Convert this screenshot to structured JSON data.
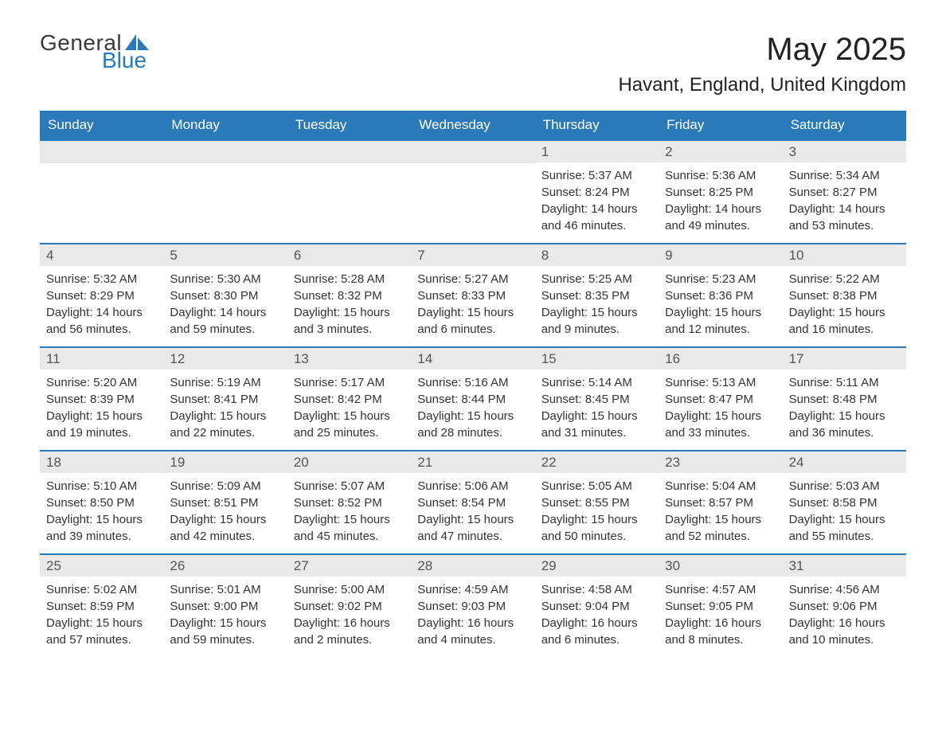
{
  "logo": {
    "general": "General",
    "blue": "Blue"
  },
  "title": "May 2025",
  "location": "Havant, England, United Kingdom",
  "colors": {
    "header_bg": "#2a7ab9",
    "header_text": "#ffffff",
    "daynum_bg": "#e9e9e9",
    "border": "#2a7ab9",
    "body_text": "#333333",
    "logo_dark": "#3a3a3c",
    "logo_blue": "#2a7ab9"
  },
  "weekdays": [
    "Sunday",
    "Monday",
    "Tuesday",
    "Wednesday",
    "Thursday",
    "Friday",
    "Saturday"
  ],
  "weeks": [
    [
      null,
      null,
      null,
      null,
      {
        "day": "1",
        "sunrise": "5:37 AM",
        "sunset": "8:24 PM",
        "daylight": "14 hours and 46 minutes."
      },
      {
        "day": "2",
        "sunrise": "5:36 AM",
        "sunset": "8:25 PM",
        "daylight": "14 hours and 49 minutes."
      },
      {
        "day": "3",
        "sunrise": "5:34 AM",
        "sunset": "8:27 PM",
        "daylight": "14 hours and 53 minutes."
      }
    ],
    [
      {
        "day": "4",
        "sunrise": "5:32 AM",
        "sunset": "8:29 PM",
        "daylight": "14 hours and 56 minutes."
      },
      {
        "day": "5",
        "sunrise": "5:30 AM",
        "sunset": "8:30 PM",
        "daylight": "14 hours and 59 minutes."
      },
      {
        "day": "6",
        "sunrise": "5:28 AM",
        "sunset": "8:32 PM",
        "daylight": "15 hours and 3 minutes."
      },
      {
        "day": "7",
        "sunrise": "5:27 AM",
        "sunset": "8:33 PM",
        "daylight": "15 hours and 6 minutes."
      },
      {
        "day": "8",
        "sunrise": "5:25 AM",
        "sunset": "8:35 PM",
        "daylight": "15 hours and 9 minutes."
      },
      {
        "day": "9",
        "sunrise": "5:23 AM",
        "sunset": "8:36 PM",
        "daylight": "15 hours and 12 minutes."
      },
      {
        "day": "10",
        "sunrise": "5:22 AM",
        "sunset": "8:38 PM",
        "daylight": "15 hours and 16 minutes."
      }
    ],
    [
      {
        "day": "11",
        "sunrise": "5:20 AM",
        "sunset": "8:39 PM",
        "daylight": "15 hours and 19 minutes."
      },
      {
        "day": "12",
        "sunrise": "5:19 AM",
        "sunset": "8:41 PM",
        "daylight": "15 hours and 22 minutes."
      },
      {
        "day": "13",
        "sunrise": "5:17 AM",
        "sunset": "8:42 PM",
        "daylight": "15 hours and 25 minutes."
      },
      {
        "day": "14",
        "sunrise": "5:16 AM",
        "sunset": "8:44 PM",
        "daylight": "15 hours and 28 minutes."
      },
      {
        "day": "15",
        "sunrise": "5:14 AM",
        "sunset": "8:45 PM",
        "daylight": "15 hours and 31 minutes."
      },
      {
        "day": "16",
        "sunrise": "5:13 AM",
        "sunset": "8:47 PM",
        "daylight": "15 hours and 33 minutes."
      },
      {
        "day": "17",
        "sunrise": "5:11 AM",
        "sunset": "8:48 PM",
        "daylight": "15 hours and 36 minutes."
      }
    ],
    [
      {
        "day": "18",
        "sunrise": "5:10 AM",
        "sunset": "8:50 PM",
        "daylight": "15 hours and 39 minutes."
      },
      {
        "day": "19",
        "sunrise": "5:09 AM",
        "sunset": "8:51 PM",
        "daylight": "15 hours and 42 minutes."
      },
      {
        "day": "20",
        "sunrise": "5:07 AM",
        "sunset": "8:52 PM",
        "daylight": "15 hours and 45 minutes."
      },
      {
        "day": "21",
        "sunrise": "5:06 AM",
        "sunset": "8:54 PM",
        "daylight": "15 hours and 47 minutes."
      },
      {
        "day": "22",
        "sunrise": "5:05 AM",
        "sunset": "8:55 PM",
        "daylight": "15 hours and 50 minutes."
      },
      {
        "day": "23",
        "sunrise": "5:04 AM",
        "sunset": "8:57 PM",
        "daylight": "15 hours and 52 minutes."
      },
      {
        "day": "24",
        "sunrise": "5:03 AM",
        "sunset": "8:58 PM",
        "daylight": "15 hours and 55 minutes."
      }
    ],
    [
      {
        "day": "25",
        "sunrise": "5:02 AM",
        "sunset": "8:59 PM",
        "daylight": "15 hours and 57 minutes."
      },
      {
        "day": "26",
        "sunrise": "5:01 AM",
        "sunset": "9:00 PM",
        "daylight": "15 hours and 59 minutes."
      },
      {
        "day": "27",
        "sunrise": "5:00 AM",
        "sunset": "9:02 PM",
        "daylight": "16 hours and 2 minutes."
      },
      {
        "day": "28",
        "sunrise": "4:59 AM",
        "sunset": "9:03 PM",
        "daylight": "16 hours and 4 minutes."
      },
      {
        "day": "29",
        "sunrise": "4:58 AM",
        "sunset": "9:04 PM",
        "daylight": "16 hours and 6 minutes."
      },
      {
        "day": "30",
        "sunrise": "4:57 AM",
        "sunset": "9:05 PM",
        "daylight": "16 hours and 8 minutes."
      },
      {
        "day": "31",
        "sunrise": "4:56 AM",
        "sunset": "9:06 PM",
        "daylight": "16 hours and 10 minutes."
      }
    ]
  ],
  "labels": {
    "sunrise_prefix": "Sunrise: ",
    "sunset_prefix": "Sunset: ",
    "daylight_prefix": "Daylight: "
  }
}
